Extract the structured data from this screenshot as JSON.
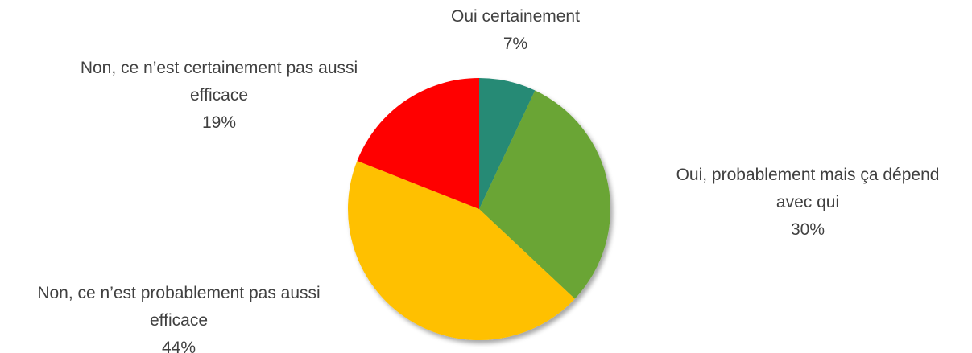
{
  "chart_data": {
    "type": "pie",
    "categories": [
      "Oui certainement",
      "Oui, probablement mais ça dépend avec qui",
      "Non, ce n’est probablement pas aussi efficace",
      "Non, ce n’est certainement pas aussi efficace"
    ],
    "values": [
      7,
      30,
      44,
      19
    ],
    "value_labels": [
      "7%",
      "30%",
      "44%",
      "19%"
    ],
    "colors": [
      "#258a74",
      "#6aa535",
      "#ffc000",
      "#ff0000"
    ]
  }
}
